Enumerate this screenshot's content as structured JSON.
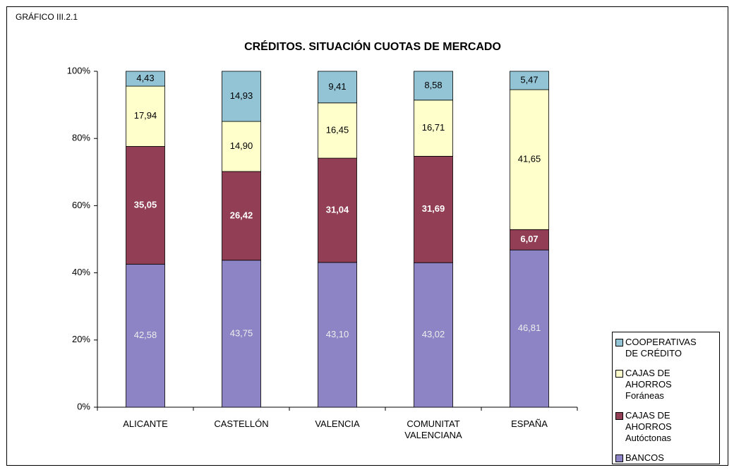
{
  "chart_data": {
    "type": "stacked_bar",
    "label": "GRÁFICO III.2.1",
    "title": "CRÉDITOS. SITUACIÓN CUOTAS DE MERCADO",
    "categories": [
      "ALICANTE",
      "CASTELLÓN",
      "VALENCIA",
      "COMUNITAT VALENCIANA",
      "ESPAÑA"
    ],
    "series": [
      {
        "name": "BANCOS",
        "color": "#8c84c4",
        "values": [
          42.58,
          43.75,
          43.1,
          43.02,
          46.81
        ],
        "value_labels": [
          "42,58",
          "43,75",
          "43,10",
          "43,02",
          "46,81"
        ]
      },
      {
        "name": "CAJAS DE AHORROS Autóctonas",
        "color": "#923f56",
        "values": [
          35.05,
          26.42,
          31.04,
          31.69,
          6.07
        ],
        "value_labels": [
          "35,05",
          "26,42",
          "31,04",
          "31,69",
          "6,07"
        ]
      },
      {
        "name": "CAJAS DE AHORROS Foráneas",
        "color": "#ffffcc",
        "values": [
          17.94,
          14.9,
          16.45,
          16.71,
          41.65
        ],
        "value_labels": [
          "17,94",
          "14,90",
          "16,45",
          "16,71",
          "41,65"
        ]
      },
      {
        "name": "COOPERATIVAS DE CRÉDITO",
        "color": "#92c4d6",
        "values": [
          4.43,
          14.93,
          9.41,
          8.58,
          5.47
        ],
        "value_labels": [
          "4,43",
          "14,93",
          "9,41",
          "8,58",
          "5,47"
        ]
      }
    ],
    "ylim": [
      0,
      100
    ],
    "yticks": [
      {
        "value": 0,
        "label": "0%"
      },
      {
        "value": 20,
        "label": "20%"
      },
      {
        "value": 40,
        "label": "40%"
      },
      {
        "value": 60,
        "label": "60%"
      },
      {
        "value": 80,
        "label": "80%"
      },
      {
        "value": 100,
        "label": "100%"
      }
    ],
    "legend": "right-bottom"
  }
}
